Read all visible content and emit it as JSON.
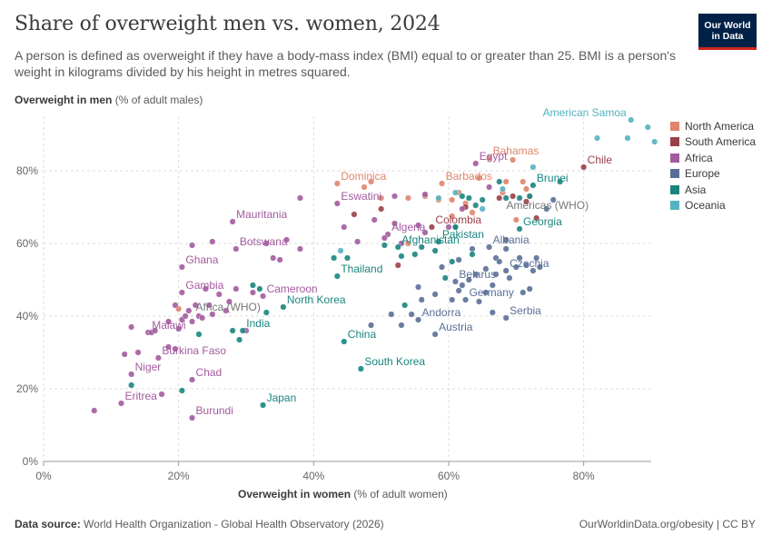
{
  "header": {
    "title": "Share of overweight men vs. women, 2024",
    "subtitle": "A person is defined as overweight if they have a body-mass index (BMI) equal to or greater than 25. BMI is a person's weight in kilograms divided by his height in metres squared.",
    "logo_line1": "Our World",
    "logo_line2": "in Data"
  },
  "axes": {
    "y_label_bold": "Overweight in men",
    "y_label_rest": " (% of adult males)",
    "x_label_bold": "Overweight in women",
    "x_label_rest": " (% of adult women)"
  },
  "footer": {
    "source_bold": "Data source:",
    "source_rest": " World Health Organization - Global Health Observatory (2026)",
    "right": "OurWorldinData.org/obesity | CC BY"
  },
  "colors": {
    "North America": "#e0846b",
    "South America": "#9a4049",
    "Africa": "#a35b9f",
    "Europe": "#5a6f97",
    "Asia": "#18857f",
    "Oceania": "#53b3c0"
  },
  "chart_data": {
    "type": "scatter",
    "title": "Share of overweight men vs. women, 2024",
    "xlabel": "Overweight in women (% of adult women)",
    "ylabel": "Overweight in men (% of adult males)",
    "xlim": [
      0,
      90
    ],
    "ylim": [
      0,
      95
    ],
    "x_ticks": [
      0,
      20,
      40,
      60,
      80
    ],
    "y_ticks": [
      0,
      20,
      40,
      60,
      80
    ],
    "x_tick_labels": [
      "0%",
      "20%",
      "40%",
      "60%",
      "80%"
    ],
    "y_tick_labels": [
      "0%",
      "20%",
      "40%",
      "60%",
      "80%"
    ],
    "grid": "horizontal dashed",
    "legend_position": "right",
    "legend": [
      "North America",
      "South America",
      "Africa",
      "Europe",
      "Asia",
      "Oceania"
    ],
    "series": [
      {
        "name": "North America",
        "points": [
          {
            "x": 43.5,
            "y": 76.5,
            "label": "Dominica"
          },
          {
            "x": 66,
            "y": 83.5,
            "label": "Bahamas"
          },
          {
            "x": 59,
            "y": 76.5,
            "label": "Barbados"
          },
          {
            "x": 20,
            "y": 42
          },
          {
            "x": 47.5,
            "y": 75.5
          },
          {
            "x": 48.5,
            "y": 77
          },
          {
            "x": 50,
            "y": 72.5
          },
          {
            "x": 54,
            "y": 72.5
          },
          {
            "x": 56.5,
            "y": 73
          },
          {
            "x": 58.5,
            "y": 72
          },
          {
            "x": 60.5,
            "y": 72
          },
          {
            "x": 61.5,
            "y": 74
          },
          {
            "x": 62.5,
            "y": 71
          },
          {
            "x": 64.5,
            "y": 78
          },
          {
            "x": 68.5,
            "y": 77
          },
          {
            "x": 69.5,
            "y": 83
          },
          {
            "x": 71,
            "y": 77
          },
          {
            "x": 71.5,
            "y": 75
          },
          {
            "x": 68,
            "y": 74
          },
          {
            "x": 54,
            "y": 60
          },
          {
            "x": 60.5,
            "y": 67.5
          },
          {
            "x": 63.5,
            "y": 68.5
          },
          {
            "x": 70,
            "y": 66.5
          },
          {
            "x": 72,
            "y": 73
          }
        ]
      },
      {
        "name": "South America",
        "points": [
          {
            "x": 80,
            "y": 81,
            "label": "Chile"
          },
          {
            "x": 57.5,
            "y": 64.5,
            "label": "Colombia"
          },
          {
            "x": 46,
            "y": 68
          },
          {
            "x": 50,
            "y": 69.5
          },
          {
            "x": 52.5,
            "y": 54
          },
          {
            "x": 61,
            "y": 64.5
          },
          {
            "x": 62.5,
            "y": 70
          },
          {
            "x": 67.5,
            "y": 72.5
          },
          {
            "x": 69.5,
            "y": 73
          },
          {
            "x": 71.5,
            "y": 71.5
          },
          {
            "x": 73,
            "y": 67
          }
        ]
      },
      {
        "name": "Africa",
        "points": [
          {
            "x": 64,
            "y": 82,
            "label": "Egypt"
          },
          {
            "x": 43.5,
            "y": 71,
            "label": "Eswatini"
          },
          {
            "x": 28,
            "y": 66,
            "label": "Mauritania"
          },
          {
            "x": 51,
            "y": 62.5,
            "label": "Algeria"
          },
          {
            "x": 28.5,
            "y": 58.5,
            "label": "Botswana"
          },
          {
            "x": 20.5,
            "y": 53.5,
            "label": "Ghana"
          },
          {
            "x": 32.5,
            "y": 45.5,
            "label": "Cameroon"
          },
          {
            "x": 20.5,
            "y": 46.5,
            "label": "Gambia"
          },
          {
            "x": 15.5,
            "y": 35.5,
            "label": "Malawi"
          },
          {
            "x": 17,
            "y": 28.5,
            "label": "Burkina Faso"
          },
          {
            "x": 13,
            "y": 24,
            "label": "Niger"
          },
          {
            "x": 22,
            "y": 22.5,
            "label": "Chad"
          },
          {
            "x": 11.5,
            "y": 16,
            "label": "Eritrea"
          },
          {
            "x": 22,
            "y": 12,
            "label": "Burundi"
          },
          {
            "x": 7.5,
            "y": 14
          },
          {
            "x": 12,
            "y": 29.5
          },
          {
            "x": 14,
            "y": 30
          },
          {
            "x": 13,
            "y": 37
          },
          {
            "x": 16,
            "y": 35.5
          },
          {
            "x": 16.5,
            "y": 36
          },
          {
            "x": 17.5,
            "y": 18.5
          },
          {
            "x": 18.5,
            "y": 31.5
          },
          {
            "x": 19.5,
            "y": 31
          },
          {
            "x": 20,
            "y": 36.5
          },
          {
            "x": 20.5,
            "y": 39
          },
          {
            "x": 21,
            "y": 40
          },
          {
            "x": 21.5,
            "y": 41.5
          },
          {
            "x": 22,
            "y": 38.5
          },
          {
            "x": 22.5,
            "y": 43
          },
          {
            "x": 23,
            "y": 40
          },
          {
            "x": 23.5,
            "y": 39.5
          },
          {
            "x": 24,
            "y": 47.5
          },
          {
            "x": 24.5,
            "y": 43
          },
          {
            "x": 25,
            "y": 40.5
          },
          {
            "x": 26,
            "y": 46
          },
          {
            "x": 27,
            "y": 41.5
          },
          {
            "x": 27.5,
            "y": 44
          },
          {
            "x": 28.5,
            "y": 47.5
          },
          {
            "x": 30,
            "y": 36
          },
          {
            "x": 31,
            "y": 46.5
          },
          {
            "x": 22,
            "y": 59.5
          },
          {
            "x": 25,
            "y": 60.5
          },
          {
            "x": 33,
            "y": 60
          },
          {
            "x": 36,
            "y": 61
          },
          {
            "x": 38,
            "y": 58.5
          },
          {
            "x": 34,
            "y": 56
          },
          {
            "x": 35,
            "y": 55.5
          },
          {
            "x": 38,
            "y": 72.5
          },
          {
            "x": 44.5,
            "y": 64.5
          },
          {
            "x": 52,
            "y": 65.5
          },
          {
            "x": 55.5,
            "y": 65
          },
          {
            "x": 56.5,
            "y": 63
          },
          {
            "x": 56.5,
            "y": 73.5
          },
          {
            "x": 52,
            "y": 73
          },
          {
            "x": 60,
            "y": 64.5
          },
          {
            "x": 62,
            "y": 69.5
          },
          {
            "x": 66,
            "y": 75.5
          },
          {
            "x": 49,
            "y": 66.5
          },
          {
            "x": 50.5,
            "y": 61.5
          },
          {
            "x": 53,
            "y": 60
          },
          {
            "x": 46.5,
            "y": 60.5
          },
          {
            "x": 19.5,
            "y": 43
          },
          {
            "x": 18.5,
            "y": 38.5
          }
        ]
      },
      {
        "name": "Europe",
        "points": [
          {
            "x": 66,
            "y": 59,
            "label": "Albania"
          },
          {
            "x": 68.5,
            "y": 52.5,
            "label": "Czechia"
          },
          {
            "x": 61,
            "y": 49.5,
            "label": "Belarus"
          },
          {
            "x": 62.5,
            "y": 44.5,
            "label": "Germany"
          },
          {
            "x": 55.5,
            "y": 39,
            "label": "Andorra"
          },
          {
            "x": 68.5,
            "y": 39.5,
            "label": "Serbia"
          },
          {
            "x": 58,
            "y": 35,
            "label": "Austria"
          },
          {
            "x": 48.5,
            "y": 37.5
          },
          {
            "x": 51.5,
            "y": 40.5
          },
          {
            "x": 53,
            "y": 37.5
          },
          {
            "x": 54.5,
            "y": 40.5
          },
          {
            "x": 55.5,
            "y": 48
          },
          {
            "x": 56,
            "y": 44.5
          },
          {
            "x": 58,
            "y": 46
          },
          {
            "x": 59,
            "y": 53.5
          },
          {
            "x": 60.5,
            "y": 44.5
          },
          {
            "x": 61.5,
            "y": 47
          },
          {
            "x": 62,
            "y": 48.5
          },
          {
            "x": 63,
            "y": 50
          },
          {
            "x": 64,
            "y": 51.5
          },
          {
            "x": 64.5,
            "y": 44
          },
          {
            "x": 65.5,
            "y": 46.5
          },
          {
            "x": 66.5,
            "y": 48.5
          },
          {
            "x": 67,
            "y": 56
          },
          {
            "x": 67.5,
            "y": 55
          },
          {
            "x": 68.5,
            "y": 58.5
          },
          {
            "x": 69,
            "y": 50.5
          },
          {
            "x": 70,
            "y": 53.5
          },
          {
            "x": 70.5,
            "y": 56
          },
          {
            "x": 71,
            "y": 46.5
          },
          {
            "x": 71.5,
            "y": 54
          },
          {
            "x": 72.5,
            "y": 52.5
          },
          {
            "x": 73,
            "y": 56
          },
          {
            "x": 73.5,
            "y": 53.5
          },
          {
            "x": 74.5,
            "y": 69.5
          },
          {
            "x": 75.5,
            "y": 72
          },
          {
            "x": 65.5,
            "y": 53
          },
          {
            "x": 63.5,
            "y": 58.5
          },
          {
            "x": 61.5,
            "y": 55.5
          },
          {
            "x": 66.5,
            "y": 41
          },
          {
            "x": 68.5,
            "y": 61
          },
          {
            "x": 72,
            "y": 47.5
          },
          {
            "x": 67,
            "y": 51.5
          }
        ]
      },
      {
        "name": "Asia",
        "points": [
          {
            "x": 72.5,
            "y": 76,
            "label": "Brunei"
          },
          {
            "x": 70.5,
            "y": 64,
            "label": "Georgia"
          },
          {
            "x": 52.5,
            "y": 59,
            "label": "Afghanistan"
          },
          {
            "x": 58.5,
            "y": 60.5,
            "label": "Pakistan"
          },
          {
            "x": 43.5,
            "y": 51,
            "label": "Thailand"
          },
          {
            "x": 35.5,
            "y": 42.5,
            "label": "North Korea"
          },
          {
            "x": 29.5,
            "y": 36,
            "label": "India"
          },
          {
            "x": 44.5,
            "y": 33,
            "label": "China"
          },
          {
            "x": 47,
            "y": 25.5,
            "label": "South Korea"
          },
          {
            "x": 32.5,
            "y": 15.5,
            "label": "Japan"
          },
          {
            "x": 13,
            "y": 21
          },
          {
            "x": 20.5,
            "y": 19.5
          },
          {
            "x": 23,
            "y": 35
          },
          {
            "x": 28,
            "y": 36
          },
          {
            "x": 29,
            "y": 33.5
          },
          {
            "x": 31,
            "y": 48.5
          },
          {
            "x": 32,
            "y": 47.5
          },
          {
            "x": 33,
            "y": 41
          },
          {
            "x": 43,
            "y": 56
          },
          {
            "x": 45,
            "y": 56
          },
          {
            "x": 53,
            "y": 56.5
          },
          {
            "x": 55,
            "y": 57
          },
          {
            "x": 58,
            "y": 58
          },
          {
            "x": 59.5,
            "y": 50.5
          },
          {
            "x": 60.5,
            "y": 55
          },
          {
            "x": 61,
            "y": 64.5
          },
          {
            "x": 62,
            "y": 73
          },
          {
            "x": 63,
            "y": 72.5
          },
          {
            "x": 64,
            "y": 70.5
          },
          {
            "x": 65,
            "y": 72
          },
          {
            "x": 67.5,
            "y": 77
          },
          {
            "x": 68.5,
            "y": 72.5
          },
          {
            "x": 70.5,
            "y": 72.5
          },
          {
            "x": 72,
            "y": 73
          },
          {
            "x": 76.5,
            "y": 77
          },
          {
            "x": 53.5,
            "y": 43
          },
          {
            "x": 56,
            "y": 59
          },
          {
            "x": 50.5,
            "y": 59.5
          },
          {
            "x": 63.5,
            "y": 57
          }
        ]
      },
      {
        "name": "Oceania",
        "points": [
          {
            "x": 87,
            "y": 94,
            "label": "American Samoa"
          },
          {
            "x": 82,
            "y": 89
          },
          {
            "x": 86.5,
            "y": 89
          },
          {
            "x": 89.5,
            "y": 92
          },
          {
            "x": 90.5,
            "y": 88
          },
          {
            "x": 72.5,
            "y": 81
          },
          {
            "x": 68,
            "y": 75
          },
          {
            "x": 65,
            "y": 69.5
          },
          {
            "x": 58.5,
            "y": 72.5
          },
          {
            "x": 44,
            "y": 58
          },
          {
            "x": 61,
            "y": 74
          }
        ]
      }
    ],
    "annotations": [
      {
        "text": "Americas (WHO)",
        "x": 68,
        "y": 70.5
      },
      {
        "text": "Africa (WHO)",
        "x": 22,
        "y": 42.5
      }
    ]
  }
}
